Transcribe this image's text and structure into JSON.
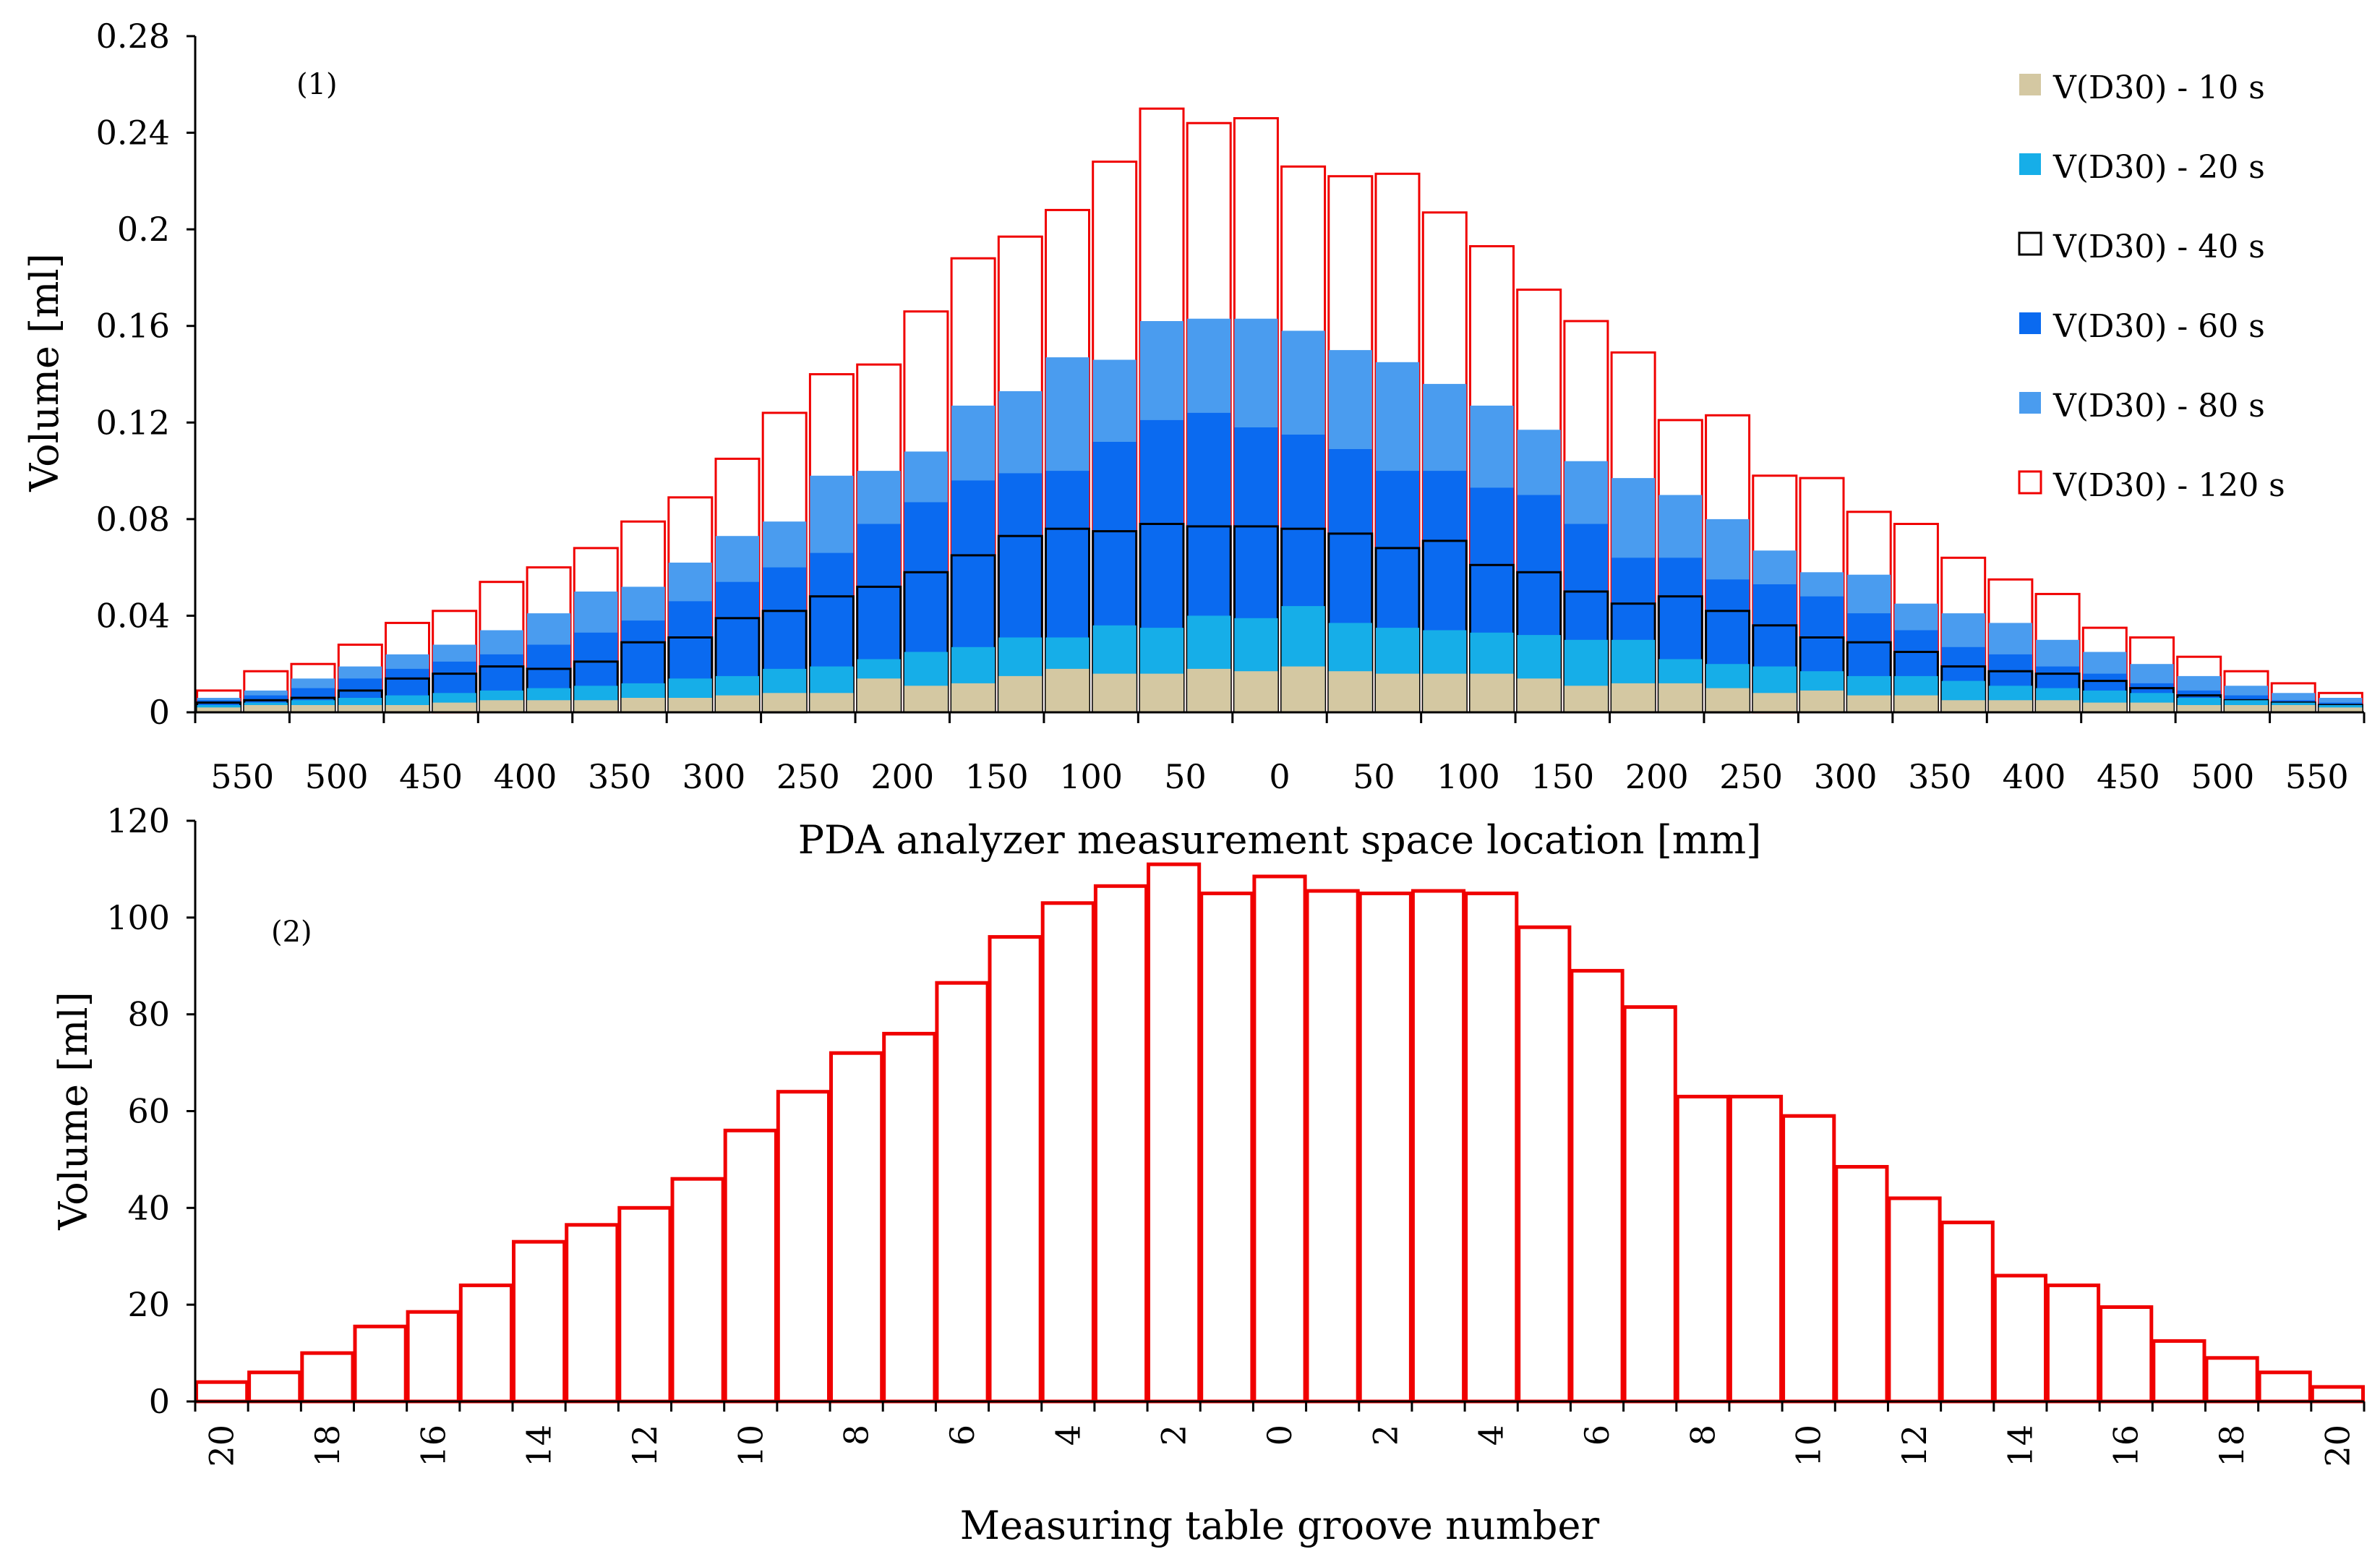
{
  "colors": {
    "s10": "#D4C8A2",
    "s20": "#16AEE8",
    "s40_fill": "#FFFFFF",
    "s40_edge": "#000000",
    "s60": "#0A6AF0",
    "s80": "#4A9CEF",
    "s120_edge": "#F00000",
    "axis": "#000000"
  },
  "chart_data": [
    {
      "type": "bar",
      "panel_label": "(1)",
      "xlabel": "PDA analyzer measurement space location [mm]",
      "ylabel": "Volume [ml]",
      "ylim": [
        0,
        0.28
      ],
      "yticks": [
        "0",
        "0.04",
        "0.08",
        "0.12",
        "0.16",
        "0.2",
        "0.24",
        "0.28"
      ],
      "xtick_labels": [
        "550",
        "500",
        "450",
        "400",
        "350",
        "300",
        "250",
        "200",
        "150",
        "100",
        "50",
        "0",
        "50",
        "100",
        "150",
        "200",
        "250",
        "300",
        "350",
        "400",
        "450",
        "500",
        "550"
      ],
      "legend_position": "top-right",
      "series": [
        {
          "name": "V(D30) - 10 s",
          "color_key": "s10",
          "values": [
            0.002,
            0.003,
            0.003,
            0.003,
            0.003,
            0.004,
            0.005,
            0.005,
            0.005,
            0.006,
            0.006,
            0.007,
            0.008,
            0.008,
            0.014,
            0.011,
            0.012,
            0.015,
            0.018,
            0.016,
            0.016,
            0.018,
            0.017,
            0.019,
            0.017,
            0.016,
            0.016,
            0.016,
            0.014,
            0.011,
            0.012,
            0.012,
            0.01,
            0.008,
            0.009,
            0.007,
            0.007,
            0.005,
            0.005,
            0.005,
            0.004,
            0.004,
            0.003,
            0.003,
            0.003,
            0.002
          ]
        },
        {
          "name": "V(D30) - 20 s",
          "color_key": "s20",
          "values": [
            0.003,
            0.004,
            0.005,
            0.006,
            0.007,
            0.008,
            0.009,
            0.01,
            0.011,
            0.012,
            0.014,
            0.015,
            0.018,
            0.019,
            0.022,
            0.025,
            0.027,
            0.031,
            0.031,
            0.036,
            0.035,
            0.04,
            0.039,
            0.044,
            0.037,
            0.035,
            0.034,
            0.033,
            0.032,
            0.03,
            0.03,
            0.022,
            0.02,
            0.019,
            0.017,
            0.015,
            0.015,
            0.013,
            0.011,
            0.01,
            0.009,
            0.008,
            0.006,
            0.005,
            0.004,
            0.003
          ]
        },
        {
          "name": "V(D30) - 40 s",
          "color_key": "s40",
          "values": [
            0.004,
            0.005,
            0.006,
            0.009,
            0.014,
            0.016,
            0.019,
            0.018,
            0.021,
            0.029,
            0.031,
            0.039,
            0.042,
            0.048,
            0.052,
            0.058,
            0.065,
            0.073,
            0.076,
            0.075,
            0.078,
            0.077,
            0.077,
            0.076,
            0.074,
            0.068,
            0.071,
            0.061,
            0.058,
            0.05,
            0.045,
            0.048,
            0.042,
            0.036,
            0.031,
            0.029,
            0.025,
            0.019,
            0.017,
            0.016,
            0.013,
            0.01,
            0.007,
            0.005,
            0.004,
            0.003
          ]
        },
        {
          "name": "V(D30) - 60 s",
          "color_key": "s60",
          "values": [
            0.005,
            0.007,
            0.01,
            0.014,
            0.018,
            0.021,
            0.024,
            0.028,
            0.033,
            0.038,
            0.046,
            0.054,
            0.06,
            0.066,
            0.078,
            0.087,
            0.096,
            0.099,
            0.1,
            0.112,
            0.121,
            0.124,
            0.118,
            0.115,
            0.109,
            0.1,
            0.1,
            0.093,
            0.09,
            0.078,
            0.064,
            0.064,
            0.055,
            0.053,
            0.048,
            0.041,
            0.034,
            0.027,
            0.024,
            0.019,
            0.016,
            0.012,
            0.009,
            0.007,
            0.005,
            0.004
          ]
        },
        {
          "name": "V(D30) - 80 s",
          "color_key": "s80",
          "values": [
            0.006,
            0.009,
            0.014,
            0.019,
            0.024,
            0.028,
            0.034,
            0.041,
            0.05,
            0.052,
            0.062,
            0.073,
            0.079,
            0.098,
            0.1,
            0.108,
            0.127,
            0.133,
            0.147,
            0.146,
            0.162,
            0.163,
            0.163,
            0.158,
            0.15,
            0.145,
            0.136,
            0.127,
            0.117,
            0.104,
            0.097,
            0.09,
            0.08,
            0.067,
            0.058,
            0.057,
            0.045,
            0.041,
            0.037,
            0.03,
            0.025,
            0.02,
            0.015,
            0.011,
            0.008,
            0.006
          ]
        },
        {
          "name": "V(D30) - 120 s",
          "color_key": "s120",
          "values": [
            0.009,
            0.017,
            0.02,
            0.028,
            0.037,
            0.042,
            0.054,
            0.06,
            0.068,
            0.079,
            0.089,
            0.105,
            0.124,
            0.14,
            0.144,
            0.166,
            0.188,
            0.197,
            0.208,
            0.228,
            0.25,
            0.244,
            0.246,
            0.226,
            0.222,
            0.223,
            0.207,
            0.193,
            0.175,
            0.162,
            0.149,
            0.121,
            0.123,
            0.098,
            0.097,
            0.083,
            0.078,
            0.064,
            0.055,
            0.049,
            0.035,
            0.031,
            0.023,
            0.017,
            0.012,
            0.008
          ]
        }
      ]
    },
    {
      "type": "bar",
      "panel_label": "(2)",
      "xlabel": "Measuring table groove number",
      "ylabel": "Volume [ml]",
      "ylim": [
        0,
        120
      ],
      "yticks": [
        "0",
        "20",
        "40",
        "60",
        "80",
        "100",
        "120"
      ],
      "xtick_labels": [
        "20",
        "18",
        "16",
        "14",
        "12",
        "10",
        "8",
        "6",
        "4",
        "2",
        "0",
        "2",
        "4",
        "6",
        "8",
        "10",
        "12",
        "14",
        "16",
        "18",
        "20"
      ],
      "series": [
        {
          "name": "Volume",
          "color_key": "s120",
          "values": [
            4,
            6,
            10,
            15.5,
            18.5,
            24,
            33,
            36.5,
            40,
            46,
            56,
            64,
            72,
            76,
            86.5,
            96,
            103,
            106.5,
            111,
            105,
            108.5,
            105.5,
            105,
            105.5,
            105,
            98,
            89,
            81.5,
            63,
            63,
            59,
            48.5,
            42,
            37,
            26,
            24,
            19.5,
            12.5,
            9,
            6,
            3
          ]
        }
      ]
    }
  ]
}
